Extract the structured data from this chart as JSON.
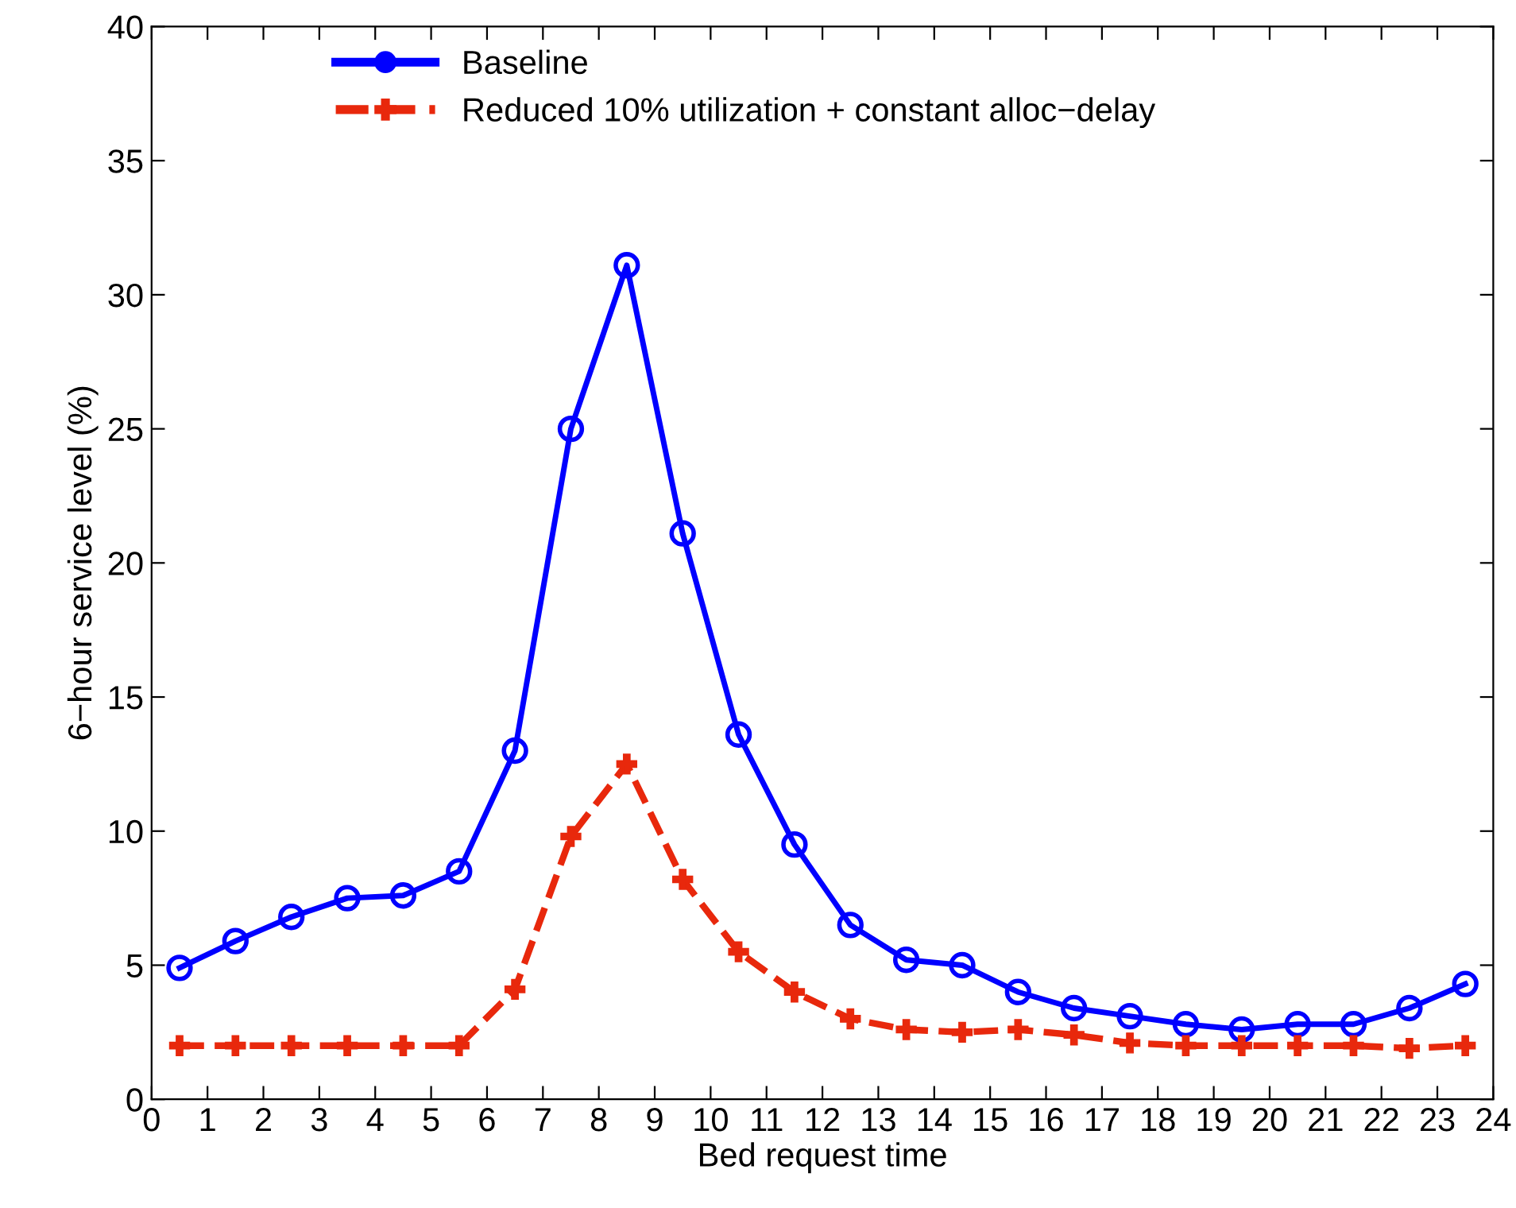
{
  "chart_data": {
    "type": "line",
    "xlabel": "Bed request time",
    "ylabel": "6−hour service level (%)",
    "x": [
      0.5,
      1.5,
      2.5,
      3.5,
      4.5,
      5.5,
      6.5,
      7.5,
      8.5,
      9.5,
      10.5,
      11.5,
      12.5,
      13.5,
      14.5,
      15.5,
      16.5,
      17.5,
      18.5,
      19.5,
      20.5,
      21.5,
      22.5,
      23.5
    ],
    "series": [
      {
        "name": "Baseline",
        "color": "#0000ff",
        "marker": "circle",
        "line_style": "solid",
        "values": [
          4.9,
          5.9,
          6.8,
          7.5,
          7.6,
          8.5,
          13.0,
          25.0,
          31.1,
          21.1,
          13.6,
          9.5,
          6.5,
          5.2,
          5.0,
          4.0,
          3.4,
          3.1,
          2.8,
          2.6,
          2.8,
          2.8,
          3.4,
          4.3
        ]
      },
      {
        "name": "Reduced 10% utilization + constant alloc−delay",
        "color": "#e8280c",
        "marker": "cross",
        "line_style": "dashed",
        "values": [
          2.0,
          2.0,
          2.0,
          2.0,
          2.0,
          2.0,
          4.1,
          9.8,
          12.5,
          8.2,
          5.5,
          4.0,
          3.0,
          2.6,
          2.5,
          2.6,
          2.4,
          2.1,
          2.0,
          2.0,
          2.0,
          2.0,
          1.9,
          2.0
        ]
      }
    ],
    "xlim": [
      0,
      24
    ],
    "xticks": [
      0,
      1,
      2,
      3,
      4,
      5,
      6,
      7,
      8,
      9,
      10,
      11,
      12,
      13,
      14,
      15,
      16,
      17,
      18,
      19,
      20,
      21,
      22,
      23,
      24
    ],
    "ylim": [
      0,
      40
    ],
    "yticks": [
      0,
      5,
      10,
      15,
      20,
      25,
      30,
      35,
      40
    ],
    "grid": false,
    "legend": "top left"
  }
}
